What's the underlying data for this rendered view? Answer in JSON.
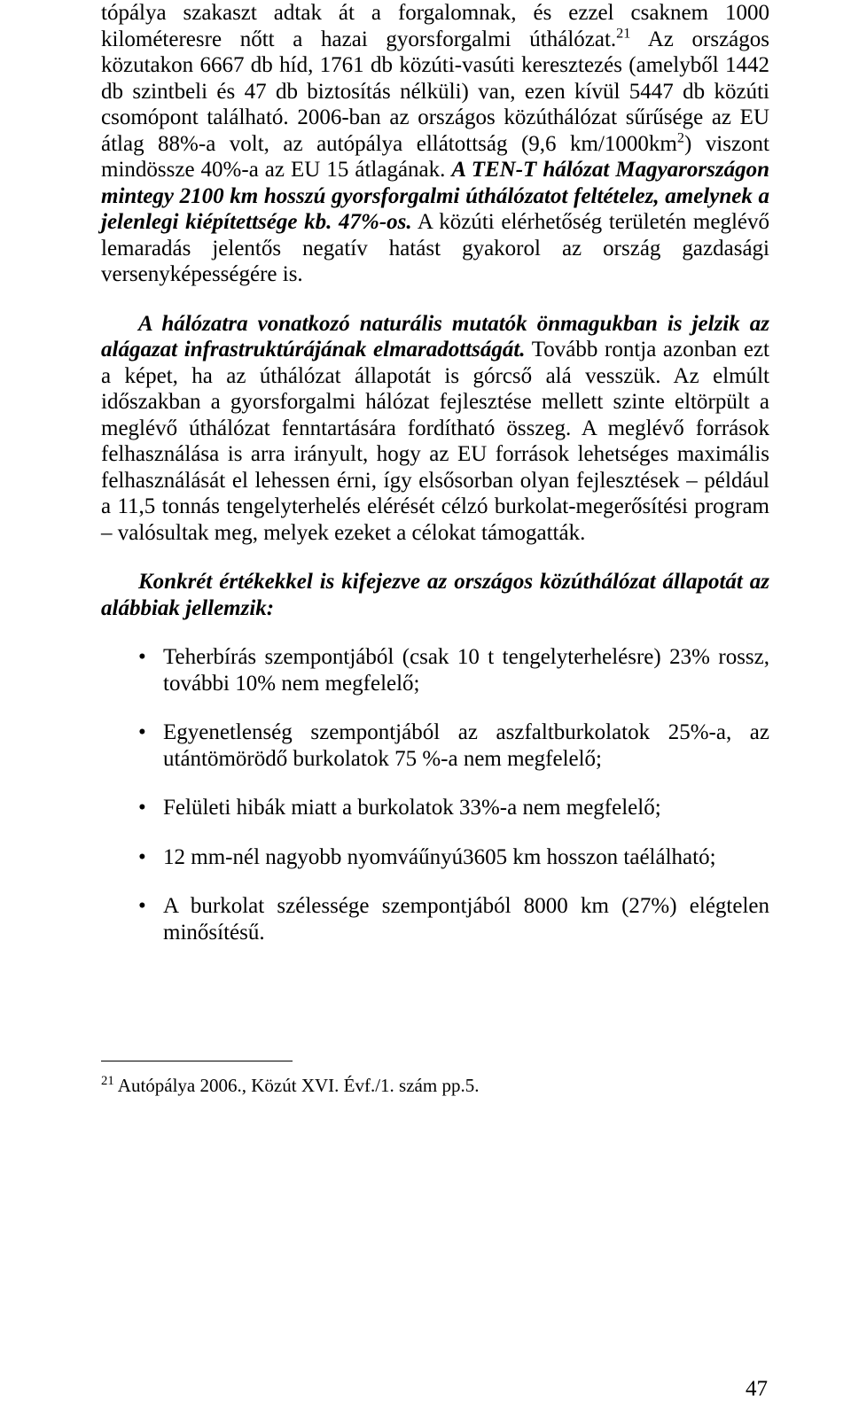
{
  "paragraphs": {
    "p1": {
      "seg1": "tópálya szakaszt adtak át a forgalomnak, és ezzel csaknem 1000 kilométeresre nőtt a hazai gyorsforgalmi úthálózat.",
      "fn21_mark": "21",
      "seg2": " Az országos közutakon 6667 db híd, 1761 db közúti-vasúti keresztezés (amelyből 1442 db szintbeli és 47 db biztosítás nélküli) van, ezen kívül 5447 db közúti csomópont található. 2006-ban az országos közúthálózat sűrűsége az EU átlag 88%-a volt, az autópálya ellátottság (9,6 km/1000km",
      "sup2": "2",
      "seg3": ") viszont mindössze 40%-a az EU 15 átlagának. ",
      "italic1": "A TEN-T hálózat Magyarországon mintegy 2100 km hosszú gyorsforgalmi úthálózatot feltételez, amelynek a jelenlegi kiépítettsége kb. 47%-os.",
      "seg4": " A közúti elérhetőség területén meglévő lemaradás jelentős negatív hatást gyakorol az ország gazdasági versenyképességére is."
    },
    "p2": {
      "italic1": "A hálózatra vonatkozó naturális mutatók önmagukban is jelzik az alágazat infrastruktúrájának elmaradottságát.",
      "seg1": " Tovább rontja azonban ezt a képet, ha az úthálózat állapotát is górcső alá vesszük. Az elmúlt időszakban a gyorsforgalmi hálózat fejlesztése mellett szinte eltörpült a meglévő úthálózat fenntartására fordítható összeg. A meglévő források felhasználása is arra irányult, hogy az EU források lehetséges maximális felhasználását el lehessen érni, így elsősorban olyan fejlesztések – például a 11,5 tonnás tengelyterhelés elérését célzó burkolat-megerősítési program – valósultak meg, melyek ezeket a célokat támogatták."
    },
    "p3": {
      "italic1": "Konkrét értékekkel is kifejezve az országos közúthálózat állapotát az alábbiak jellemzik:"
    }
  },
  "bullets": [
    "Teherbírás szempontjából (csak 10 t tengelyterhelésre) 23% rossz, további 10% nem megfelelő;",
    "Egyenetlenség szempontjából az aszfaltburkolatok 25%-a, az utántömörödő burkolatok 75 %-a nem megfelelő;",
    "Felületi hibák miatt a burkolatok 33%-a nem megfelelő;",
    "12 mm-nél nagyobb nyomváűnyú3605 km hosszon taélálható;",
    "A burkolat szélessége szempontjából 8000 km (27%) elégtelen minősítésű."
  ],
  "footnote": {
    "mark": "21",
    "text": " Autópálya 2006., Közút XVI. Évf./1. szám pp.5."
  },
  "page_number": "47"
}
